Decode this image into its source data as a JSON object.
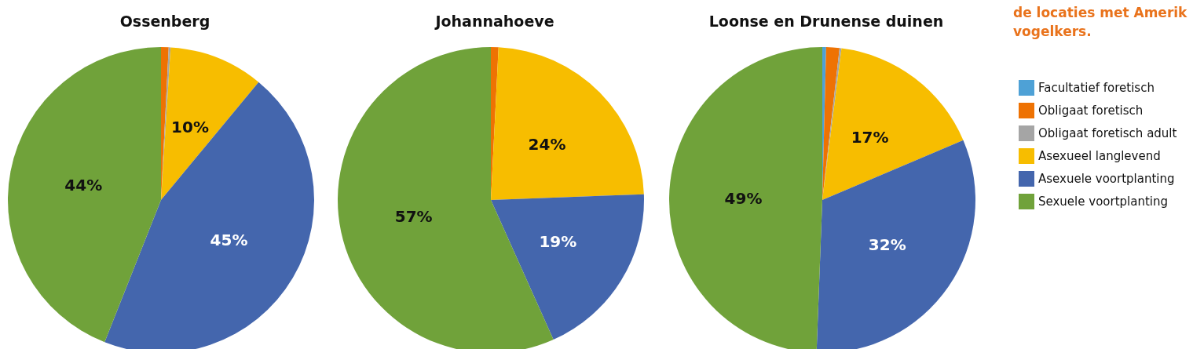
{
  "chart_data": [
    {
      "type": "pie",
      "title": "Ossenberg",
      "categories": [
        null,
        null,
        null,
        null,
        null,
        null
      ],
      "values": [
        0,
        0.8,
        0.2,
        10,
        45,
        44
      ],
      "colors": [
        "#4ea1d6",
        "#ee7203",
        "#a5a5a5",
        "#f7bd00",
        "#4466ad",
        "#70a23a"
      ],
      "value_labels": [
        null,
        null,
        null,
        "10%",
        "45%",
        "44%"
      ]
    },
    {
      "type": "pie",
      "title": "Johannahoeve",
      "categories": [
        null,
        null,
        null,
        null,
        null,
        null
      ],
      "values": [
        0,
        0.8,
        0,
        23.6,
        18.9,
        56.7
      ],
      "colors": [
        "#4ea1d6",
        "#ee7203",
        "#a5a5a5",
        "#f7bd00",
        "#4466ad",
        "#70a23a"
      ],
      "value_labels": [
        null,
        null,
        null,
        "24%",
        "19%",
        "57%"
      ]
    },
    {
      "type": "pie",
      "title": "Loonse en Drunense duinen",
      "categories": [
        "Facultatief foretisch",
        "Obligaat foretisch",
        "Obligaat foretisch adult",
        "Asexueel langlevend",
        "Asexuele voortplanting",
        "Sexuele voortplanting"
      ],
      "values": [
        0.4,
        1.4,
        0.2,
        16.6,
        32,
        49.4
      ],
      "colors": [
        "#4ea1d6",
        "#ee7203",
        "#a5a5a5",
        "#f7bd00",
        "#4466ad",
        "#70a23a"
      ],
      "value_labels": [
        null,
        null,
        null,
        "17%",
        "32%",
        "49%"
      ],
      "legend": "right",
      "annotations": [
        "de locaties met Amerik\nvogelkers."
      ]
    }
  ]
}
